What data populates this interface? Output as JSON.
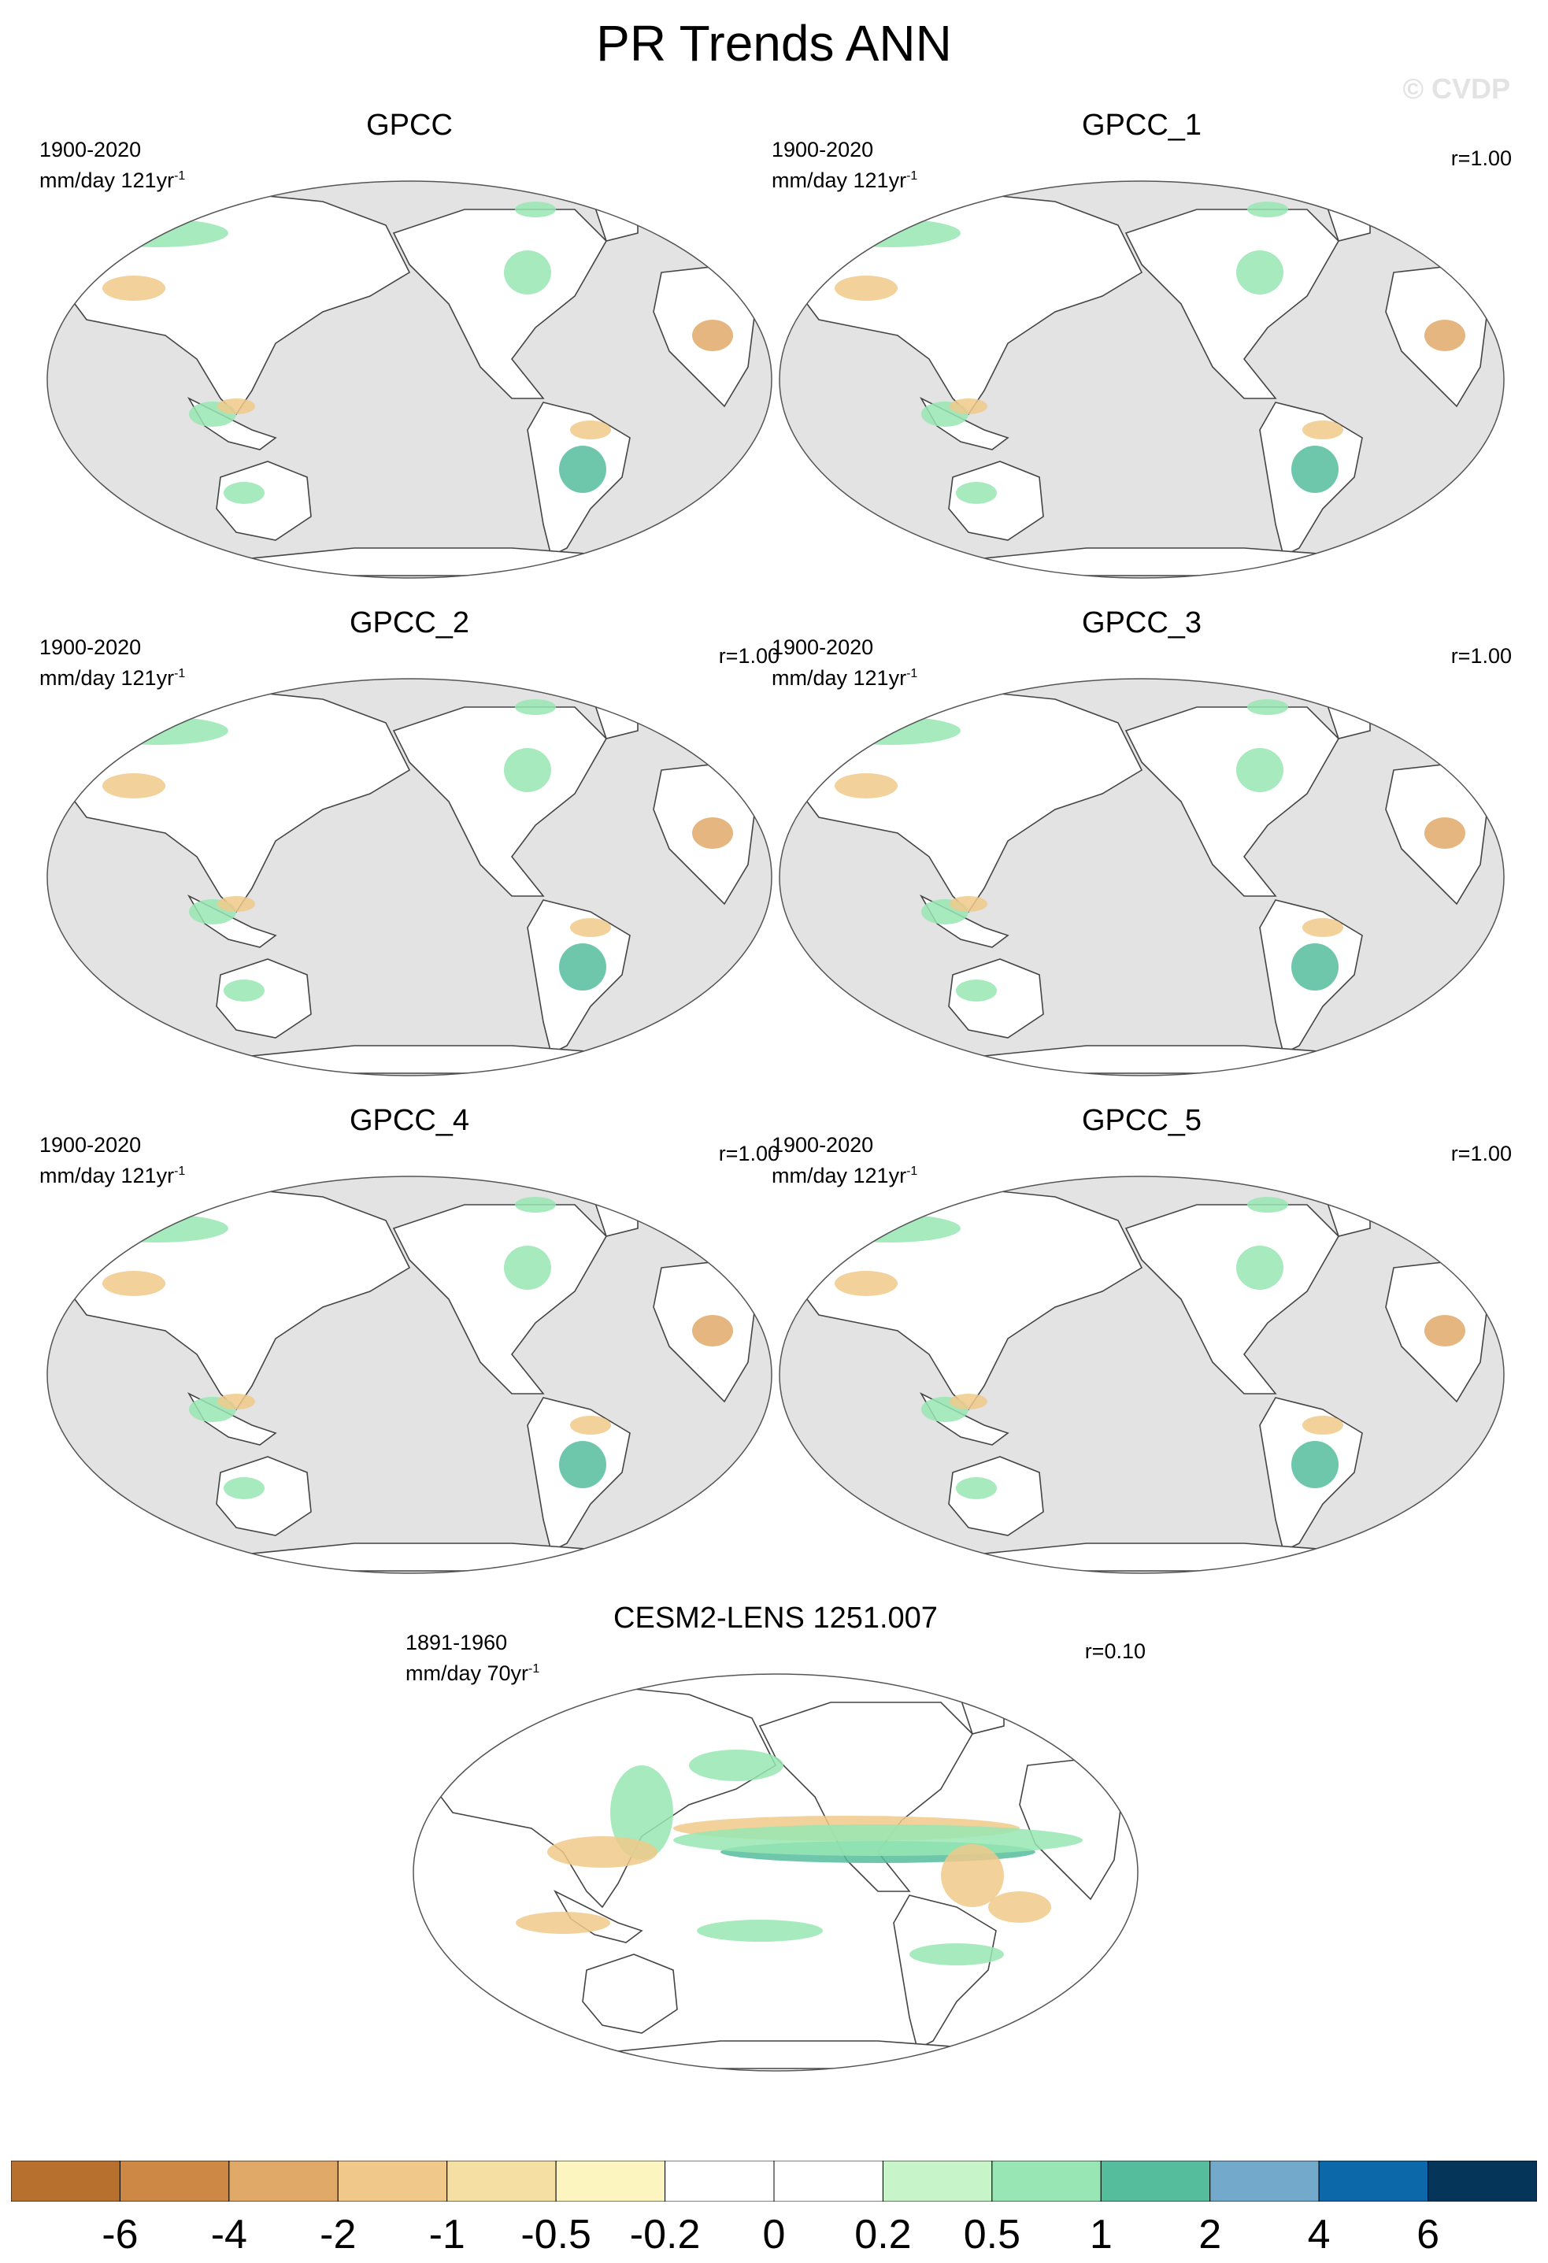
{
  "title": "PR Trends ANN",
  "watermark": "© CVDP",
  "panels": [
    {
      "name": "GPCC",
      "period": "1900-2020",
      "units": "mm/day 121yr",
      "units_exp": "-1",
      "r": "",
      "tint": "obs"
    },
    {
      "name": "GPCC_1",
      "period": "1900-2020",
      "units": "mm/day 121yr",
      "units_exp": "-1",
      "r": "r=1.00",
      "tint": "obs"
    },
    {
      "name": "GPCC_2",
      "period": "1900-2020",
      "units": "mm/day 121yr",
      "units_exp": "-1",
      "r": "r=1.00",
      "tint": "obs"
    },
    {
      "name": "GPCC_3",
      "period": "1900-2020",
      "units": "mm/day 121yr",
      "units_exp": "-1",
      "r": "r=1.00",
      "tint": "obs"
    },
    {
      "name": "GPCC_4",
      "period": "1900-2020",
      "units": "mm/day 121yr",
      "units_exp": "-1",
      "r": "r=1.00",
      "tint": "obs"
    },
    {
      "name": "GPCC_5",
      "period": "1900-2020",
      "units": "mm/day 121yr",
      "units_exp": "-1",
      "r": "r=1.00",
      "tint": "obs"
    },
    {
      "name": "CESM2-LENS 1251.007",
      "period": "1891-1960",
      "units": "mm/day 70yr",
      "units_exp": "-1",
      "r": "r=0.10",
      "tint": "model"
    }
  ],
  "colorbar": {
    "colors": [
      "#b8702f",
      "#cd8845",
      "#e0a968",
      "#f0c98a",
      "#f5dfa3",
      "#fdf5c0",
      "#ffffff",
      "#ffffff",
      "#c7f4c8",
      "#98e6b3",
      "#56bd9c",
      "#73a9cb",
      "#0d68aa",
      "#05365a"
    ],
    "labels": [
      "-6",
      "-4",
      "-2",
      "-1",
      "-0.5",
      "-0.2",
      "0",
      "0.2",
      "0.5",
      "1",
      "2",
      "4",
      "6"
    ]
  },
  "colors": {
    "ocean": "#e3e3e3",
    "land": "#ffffff",
    "coast": "#444444",
    "wet": "#98e6b3",
    "dry": "#f0c98a"
  }
}
